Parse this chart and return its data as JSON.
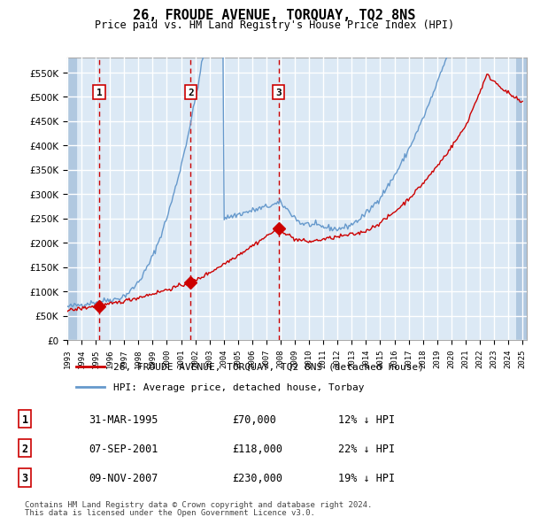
{
  "title": "26, FROUDE AVENUE, TORQUAY, TQ2 8NS",
  "subtitle": "Price paid vs. HM Land Registry's House Price Index (HPI)",
  "background_color": "#dce9f5",
  "plot_bg_color": "#dce9f5",
  "hatch_color": "#b0c8e0",
  "grid_color": "#ffffff",
  "red_line_color": "#cc0000",
  "blue_line_color": "#6699cc",
  "sale_marker_color": "#cc0000",
  "dashed_line_color": "#cc0000",
  "ylim": [
    0,
    580000
  ],
  "yticks": [
    0,
    50000,
    100000,
    150000,
    200000,
    250000,
    300000,
    350000,
    400000,
    450000,
    500000,
    550000
  ],
  "ytick_labels": [
    "£0",
    "£50K",
    "£100K",
    "£150K",
    "£200K",
    "£250K",
    "£300K",
    "£350K",
    "£400K",
    "£450K",
    "£500K",
    "£550K"
  ],
  "xtick_years": [
    1993,
    1994,
    1995,
    1996,
    1997,
    1998,
    1999,
    2000,
    2001,
    2002,
    2003,
    2004,
    2005,
    2006,
    2007,
    2008,
    2009,
    2010,
    2011,
    2012,
    2013,
    2014,
    2015,
    2016,
    2017,
    2018,
    2019,
    2020,
    2021,
    2022,
    2023,
    2024,
    2025
  ],
  "sale_dates": [
    1995.25,
    2001.68,
    2007.85
  ],
  "sale_prices": [
    70000,
    118000,
    230000
  ],
  "sale_labels": [
    "1",
    "2",
    "3"
  ],
  "sale_info": [
    {
      "label": "1",
      "date": "31-MAR-1995",
      "price": "£70,000",
      "pct": "12% ↓ HPI"
    },
    {
      "label": "2",
      "date": "07-SEP-2001",
      "price": "£118,000",
      "pct": "22% ↓ HPI"
    },
    {
      "label": "3",
      "date": "09-NOV-2007",
      "price": "£230,000",
      "pct": "19% ↓ HPI"
    }
  ],
  "legend_entries": [
    {
      "label": "26, FROUDE AVENUE, TORQUAY, TQ2 8NS (detached house)",
      "color": "#cc0000"
    },
    {
      "label": "HPI: Average price, detached house, Torbay",
      "color": "#6699cc"
    }
  ],
  "footer1": "Contains HM Land Registry data © Crown copyright and database right 2024.",
  "footer2": "This data is licensed under the Open Government Licence v3.0."
}
